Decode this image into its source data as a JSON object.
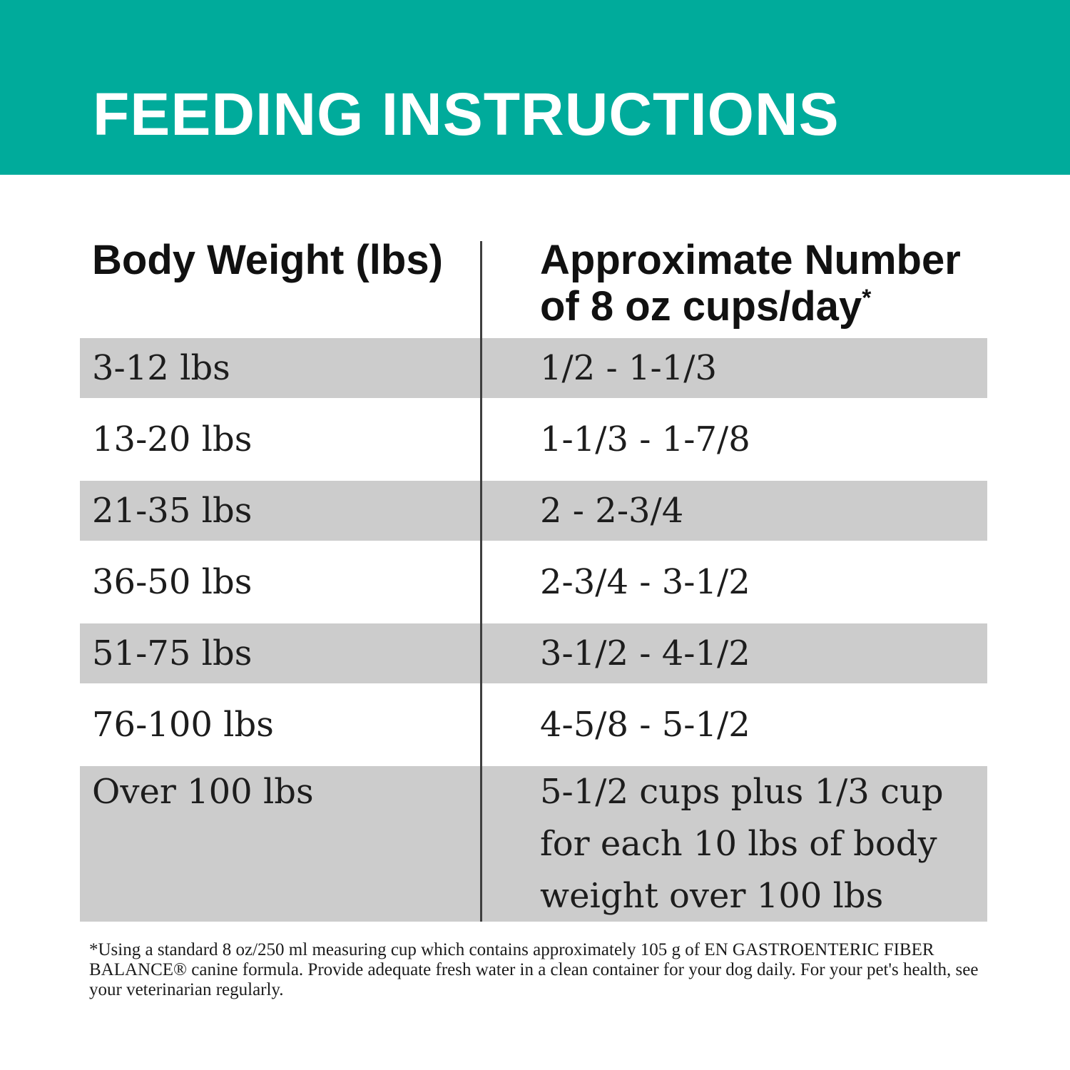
{
  "banner": {
    "title": "FEEDING INSTRUCTIONS",
    "bg_color": "#00AB9B",
    "text_color": "#FFFFFF"
  },
  "table": {
    "columns": [
      {
        "label": "Body Weight (lbs)"
      },
      {
        "label_line1": "Approximate Number",
        "label_line2": "of 8 oz cups/day",
        "footnote_marker": "*"
      }
    ],
    "rows": [
      {
        "weight": "3-12 lbs",
        "cups": "1/2 - 1-1/3",
        "shaded": true
      },
      {
        "weight": "13-20 lbs",
        "cups": "1-1/3 - 1-7/8",
        "shaded": false
      },
      {
        "weight": "21-35 lbs",
        "cups": "2 - 2-3/4",
        "shaded": true
      },
      {
        "weight": "36-50 lbs",
        "cups": "2-3/4 - 3-1/2",
        "shaded": false
      },
      {
        "weight": "51-75 lbs",
        "cups": "3-1/2 - 4-1/2",
        "shaded": true
      },
      {
        "weight": "76-100 lbs",
        "cups": "4-5/8 - 5-1/2",
        "shaded": false
      },
      {
        "weight": "Over 100 lbs",
        "cups": "5-1/2 cups plus 1/3 cup for each 10 lbs of body weight over 100 lbs",
        "shaded": true
      }
    ],
    "stripe_color": "#CCCCCC",
    "divider_color": "#3F3F3F"
  },
  "footnote": "*Using a standard 8 oz/250 ml measuring cup which contains approximately 105 g of EN GASTROENTERIC FIBER BALANCE® canine formula. Provide adequate fresh water in a clean container for your dog daily. For your pet's health, see your veterinarian regularly."
}
